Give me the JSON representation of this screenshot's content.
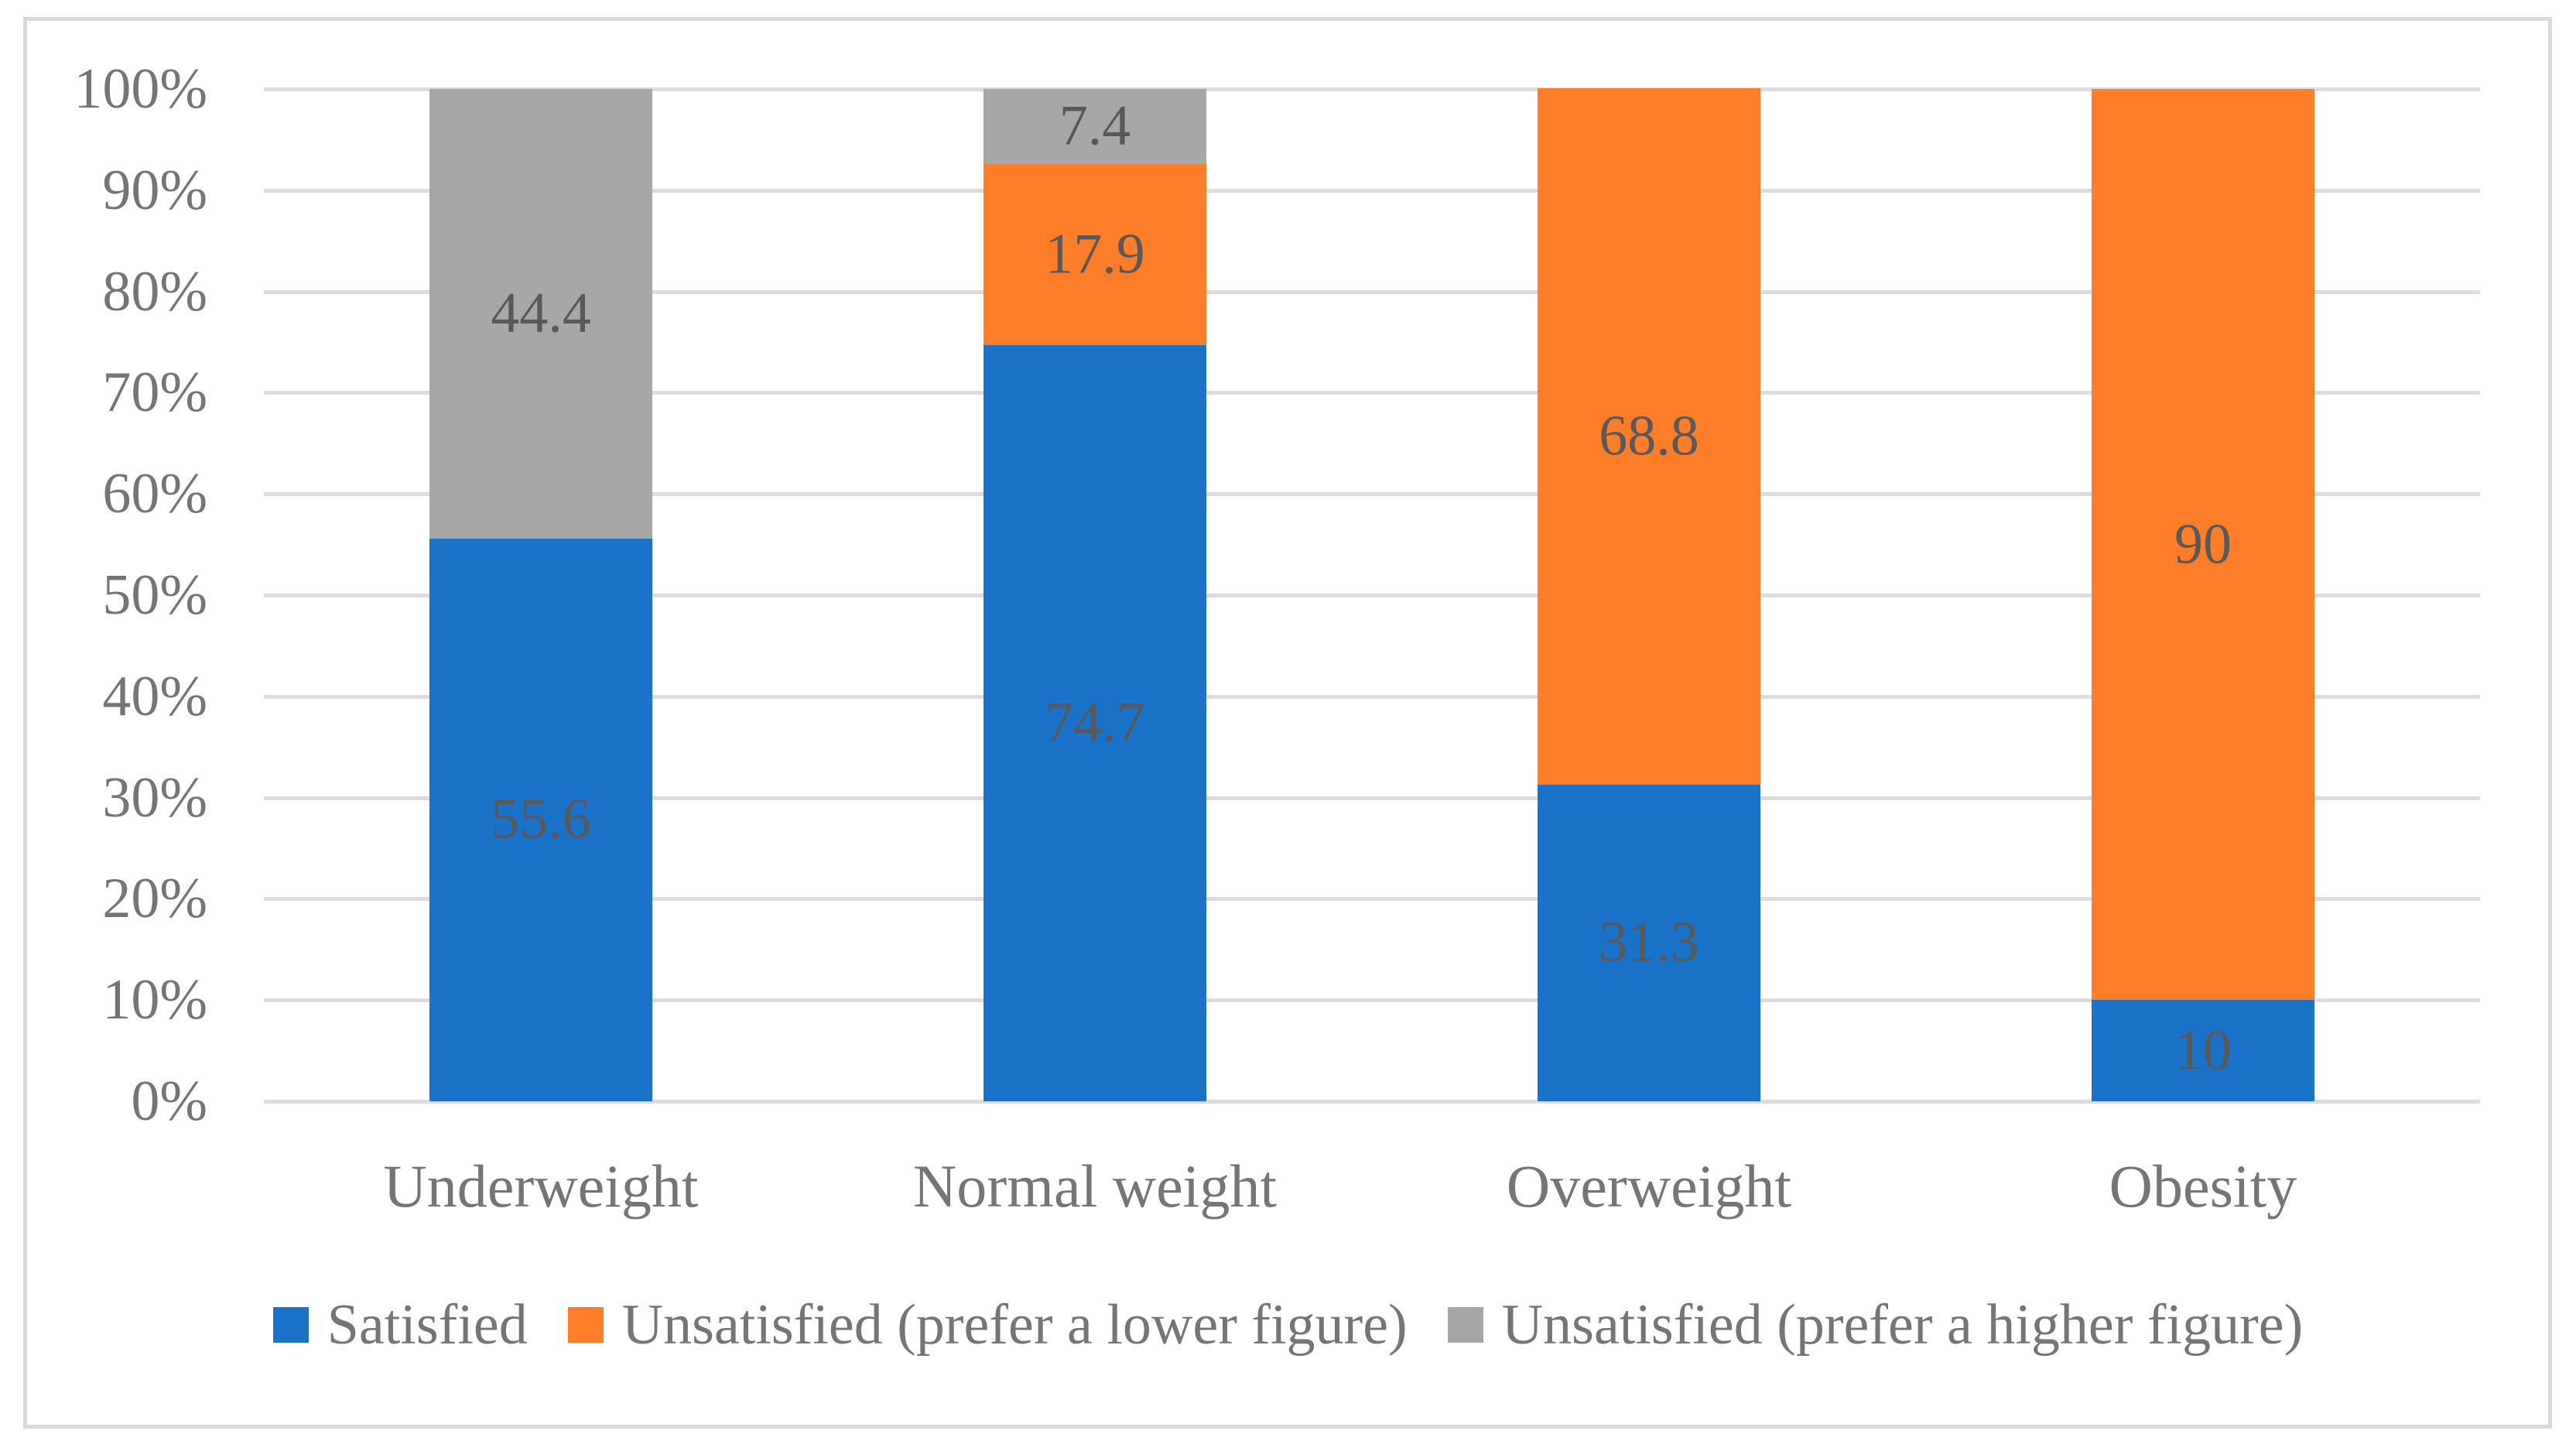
{
  "chart_data": {
    "type": "bar",
    "subtype": "stacked-100-percent",
    "title": "",
    "xlabel": "",
    "ylabel": "",
    "grid": true,
    "legend_position": "bottom",
    "data_labels": true,
    "categories": [
      "Underweight",
      "Normal weight",
      "Overweight",
      "Obesity"
    ],
    "series": [
      {
        "name": "Satisfied",
        "color": "#1A73C8",
        "values": [
          55.6,
          74.7,
          31.3,
          10
        ]
      },
      {
        "name": "Unsatisfied (prefer a lower figure)",
        "color": "#FD7D28",
        "values": [
          0,
          17.9,
          68.8,
          90
        ]
      },
      {
        "name": "Unsatisfied (prefer a higher figure)",
        "color": "#A7A7A7",
        "values": [
          44.4,
          7.4,
          0,
          0
        ]
      }
    ],
    "y_axis": {
      "min": 0,
      "max": 100,
      "ticks": [
        {
          "value": 0,
          "label": "0%"
        },
        {
          "value": 10,
          "label": "10%"
        },
        {
          "value": 20,
          "label": "20%"
        },
        {
          "value": 30,
          "label": "30%"
        },
        {
          "value": 40,
          "label": "40%"
        },
        {
          "value": 50,
          "label": "50%"
        },
        {
          "value": 60,
          "label": "60%"
        },
        {
          "value": 70,
          "label": "70%"
        },
        {
          "value": 80,
          "label": "80%"
        },
        {
          "value": 90,
          "label": "90%"
        },
        {
          "value": 100,
          "label": "100%"
        }
      ]
    },
    "colors": {
      "gridline": "#DCDCDC",
      "frame_border": "#D9D9D9",
      "tick_text": "#757575",
      "category_text": "#757575",
      "legend_text": "#757575",
      "data_label_text": "#595959",
      "background": "#FFFFFF"
    }
  }
}
